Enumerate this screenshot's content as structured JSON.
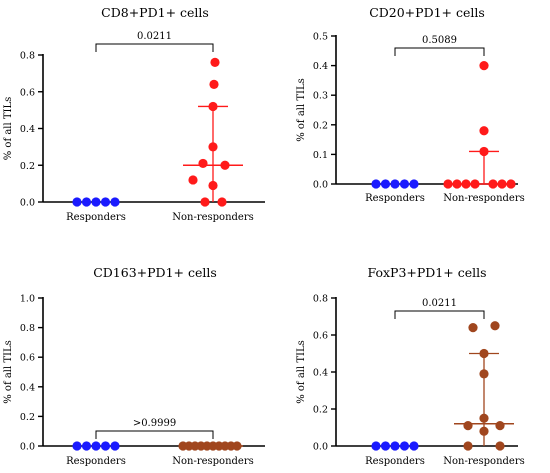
{
  "colors": {
    "responders": "#1a1aff",
    "non_responders_default": "#ff1a1a",
    "axis": "#000000"
  },
  "chart_data": [
    {
      "type": "scatter",
      "title": "CD8+PD1+ cells",
      "ylabel": "%  of all TILs",
      "ylim": [
        0,
        0.8
      ],
      "yticks": [
        "0.0",
        "0.2",
        "0.4",
        "0.6",
        "0.8"
      ],
      "categories": [
        "Responders",
        "Non-responders"
      ],
      "p_value": "0.0211",
      "series": [
        {
          "values": [
            0,
            0,
            0,
            0,
            0
          ],
          "color": "#1a1aff"
        },
        {
          "values": [
            0.76,
            0.64,
            0.52,
            0.3,
            0.21,
            0.2,
            0.12,
            0.09,
            0.0,
            0.0
          ],
          "color": "#ff1a1a",
          "median": 0.2,
          "iqr": [
            0.0,
            0.52
          ]
        }
      ]
    },
    {
      "type": "scatter",
      "title": "CD20+PD1+ cells",
      "ylabel": "%  of all TILs",
      "ylim": [
        0,
        0.5
      ],
      "yticks": [
        "0.0",
        "0.1",
        "0.2",
        "0.3",
        "0.4",
        "0.5"
      ],
      "categories": [
        "Responders",
        "Non-responders"
      ],
      "p_value": "0.5089",
      "series": [
        {
          "values": [
            0,
            0,
            0,
            0,
            0
          ],
          "color": "#1a1aff"
        },
        {
          "values": [
            0.4,
            0.18,
            0.11,
            0,
            0,
            0,
            0,
            0,
            0,
            0
          ],
          "color": "#ff1a1a",
          "median": 0.0,
          "iqr": [
            0.0,
            0.11
          ]
        }
      ]
    },
    {
      "type": "scatter",
      "title": "CD163+PD1+ cells",
      "ylabel": "%  of all TILs",
      "ylim": [
        0,
        1.0
      ],
      "yticks": [
        "0.0",
        "0.2",
        "0.4",
        "0.6",
        "0.8",
        "1.0"
      ],
      "categories": [
        "Responders",
        "Non-responders"
      ],
      "p_value": ">0.9999",
      "series": [
        {
          "values": [
            0,
            0,
            0,
            0,
            0
          ],
          "color": "#1a1aff"
        },
        {
          "values": [
            0,
            0,
            0,
            0,
            0,
            0,
            0,
            0,
            0,
            0
          ],
          "color": "#a0461e",
          "median": 0.0,
          "iqr": [
            0.0,
            0.0
          ]
        }
      ]
    },
    {
      "type": "scatter",
      "title": "FoxP3+PD1+ cells",
      "ylabel": "%  of all TILs",
      "ylim": [
        0,
        0.8
      ],
      "yticks": [
        "0.0",
        "0.2",
        "0.4",
        "0.6",
        "0.8"
      ],
      "categories": [
        "Responders",
        "Non-responders"
      ],
      "p_value": "0.0211",
      "series": [
        {
          "values": [
            0,
            0,
            0,
            0,
            0
          ],
          "color": "#1a1aff"
        },
        {
          "values": [
            0.65,
            0.64,
            0.5,
            0.39,
            0.15,
            0.11,
            0.11,
            0.08,
            0.0,
            0.0
          ],
          "color": "#a0461e",
          "median": 0.12,
          "iqr": [
            0.0,
            0.5
          ]
        }
      ]
    }
  ]
}
